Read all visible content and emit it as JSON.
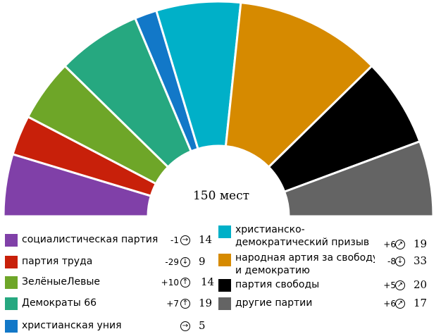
{
  "chart_data": {
    "type": "parliament-semicircle",
    "center_label": "150 мест",
    "series": [
      {
        "name": "социалистическая партия",
        "seats": 14,
        "change": "-1",
        "trend": "right",
        "color": "#8040a8"
      },
      {
        "name": "партия труда",
        "seats": 9,
        "change": "-29",
        "trend": "down",
        "color": "#c8200a"
      },
      {
        "name": "ЗелёныеЛевые",
        "seats": 14,
        "change": "+10",
        "trend": "up",
        "color": "#6ea628"
      },
      {
        "name": "Демократы 66",
        "seats": 19,
        "change": "+7",
        "trend": "up",
        "color": "#26a880"
      },
      {
        "name": "христианская уния",
        "seats": 5,
        "change": "",
        "trend": "right",
        "color": "#1278c8"
      },
      {
        "name": "христианско-демократический призыв",
        "seats": 19,
        "change": "+6",
        "trend": "up-right",
        "color": "#00b0c8"
      },
      {
        "name": "народная артия за свободу и демократию",
        "seats": 33,
        "change": "-8",
        "trend": "down",
        "color": "#d68a00"
      },
      {
        "name": "партия свободы",
        "seats": 20,
        "change": "+5",
        "trend": "up-right",
        "color": "#000000"
      },
      {
        "name": "другие партии",
        "seats": 17,
        "change": "+6",
        "trend": "up-right",
        "color": "#646464"
      }
    ],
    "total_seats": 150
  }
}
